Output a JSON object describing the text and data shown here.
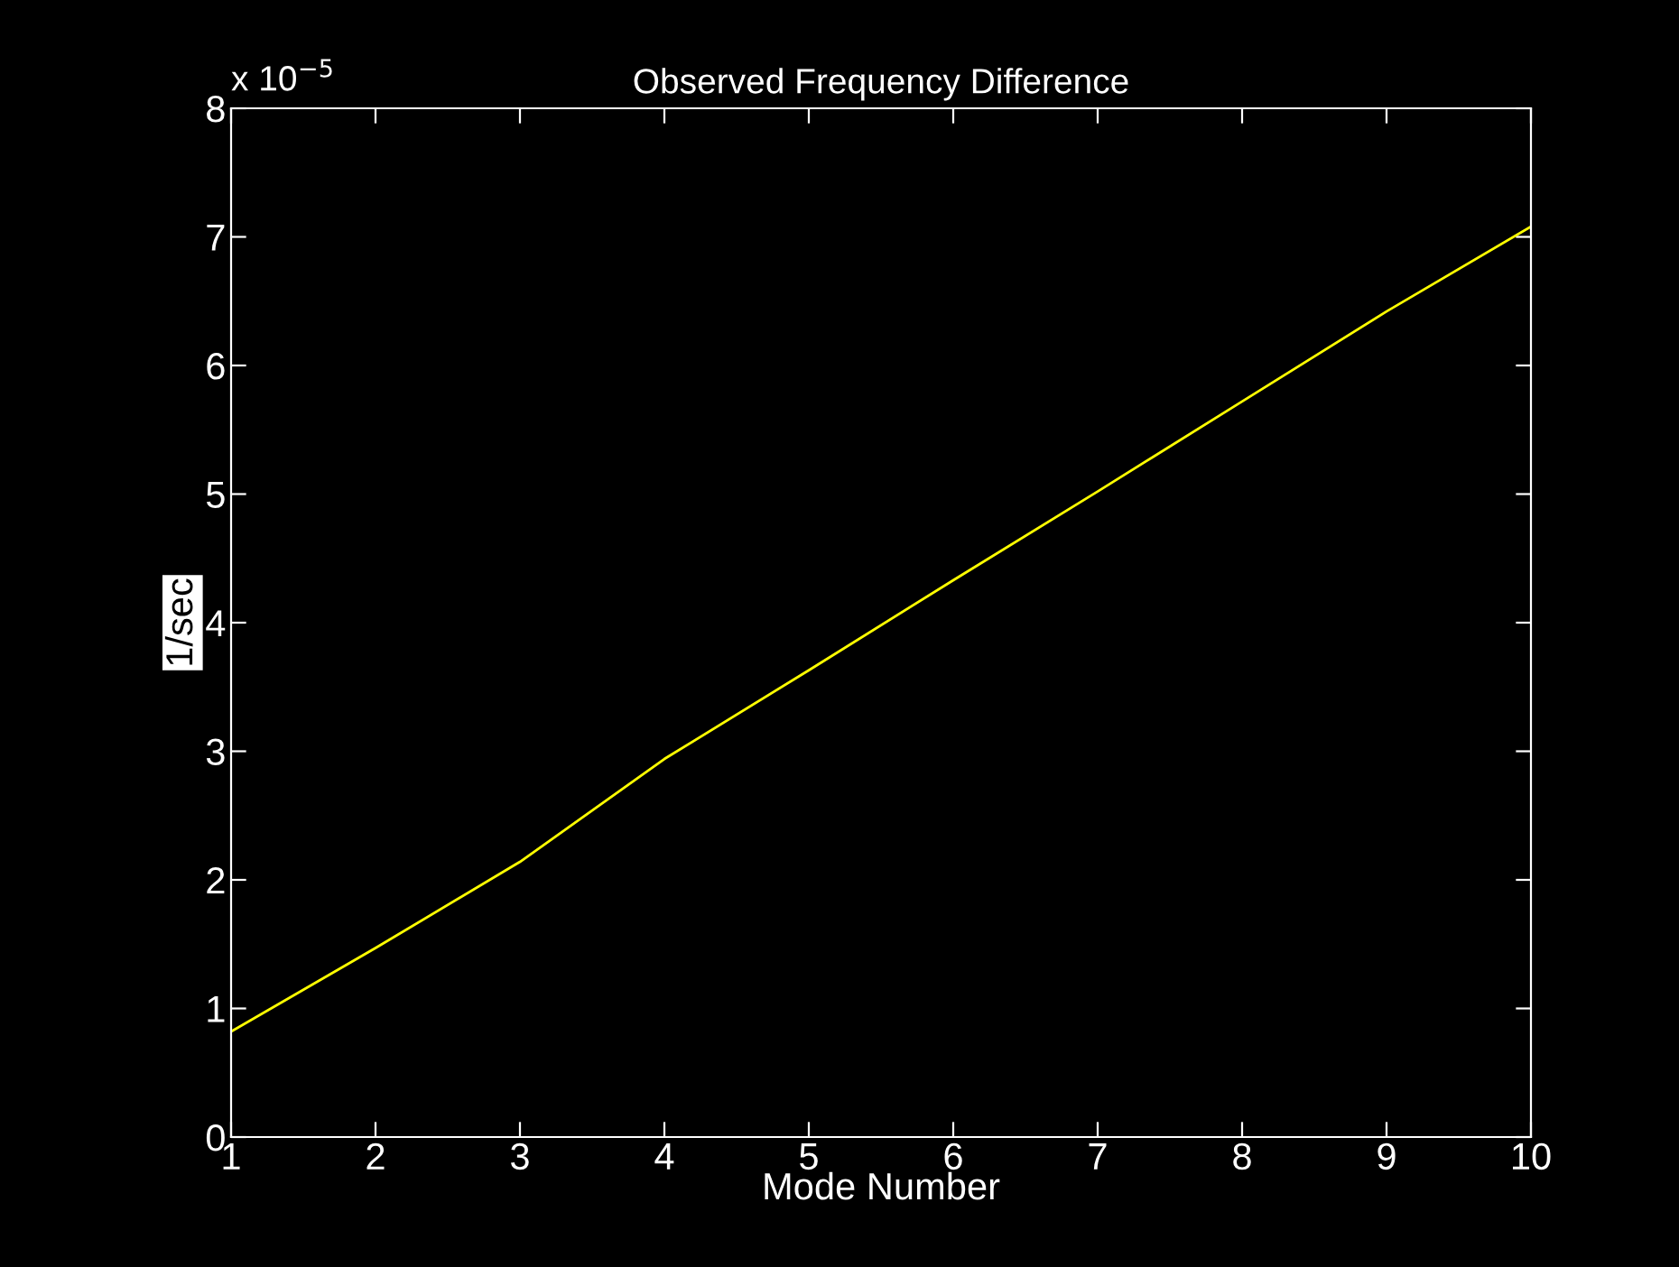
{
  "chart_data": {
    "type": "line",
    "title": "Observed Frequency Difference",
    "xlabel": "Mode Number",
    "ylabel": "1/sec",
    "annotations": [
      "x 10$^{−5}$"
    ],
    "x": [
      1,
      2,
      3,
      4,
      5,
      6,
      7,
      8,
      9,
      10
    ],
    "series": [
      {
        "color": "#ffff00",
        "values": [
          0.82,
          1.47,
          2.14,
          2.94,
          3.63,
          4.33,
          5.02,
          5.72,
          6.42,
          7.08
        ]
      }
    ],
    "xlim": [
      1,
      10
    ],
    "xticks": [
      1,
      2,
      3,
      4,
      5,
      6,
      7,
      8,
      9,
      10
    ],
    "ylim": [
      0,
      8
    ],
    "yticks": [
      0,
      1,
      2,
      3,
      4,
      5,
      6,
      7,
      8
    ],
    "grid": false,
    "legend": false,
    "marker": "none",
    "line_style": "solid"
  }
}
